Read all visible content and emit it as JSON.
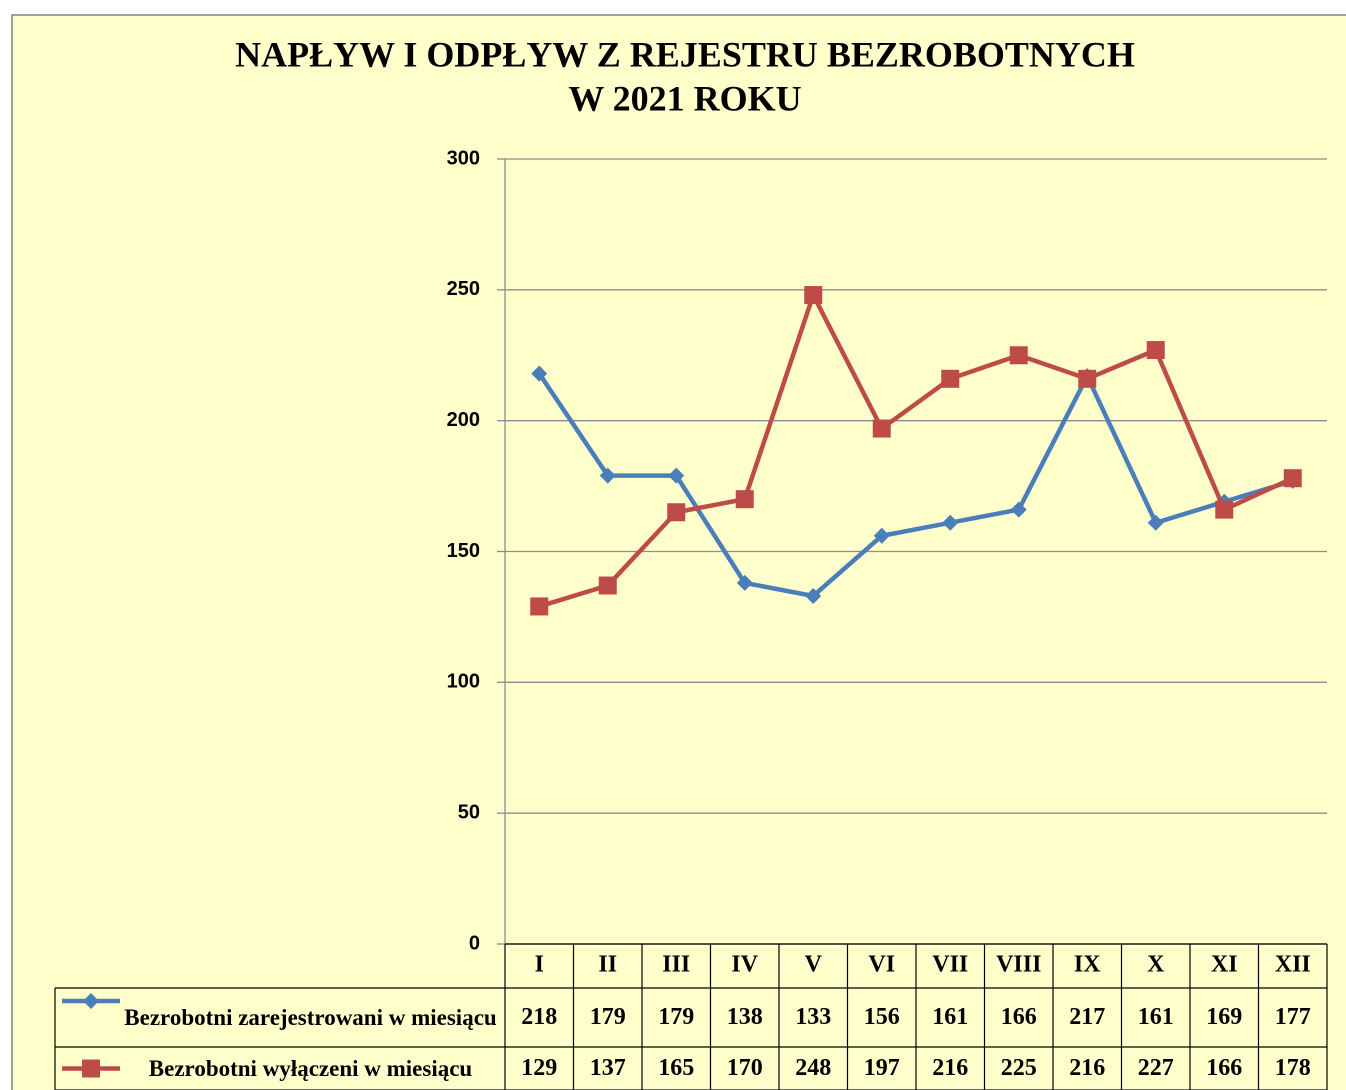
{
  "chart_data": {
    "type": "line",
    "title": [
      "NAPŁYW I ODPŁYW Z REJESTRU BEZROBOTNYCH",
      "W 2021 ROKU"
    ],
    "categories": [
      "I",
      "II",
      "III",
      "IV",
      "V",
      "VI",
      "VII",
      "VIII",
      "IX",
      "X",
      "XI",
      "XII"
    ],
    "series": [
      {
        "name": "Bezrobotni zarejestrowani w miesiącu",
        "color": "#4a7ebb",
        "marker": "diamond",
        "values": [
          218,
          179,
          179,
          138,
          133,
          156,
          161,
          166,
          217,
          161,
          169,
          177
        ]
      },
      {
        "name": "Bezrobotni wyłączeni w miesiącu",
        "color": "#be4b48",
        "marker": "square",
        "values": [
          129,
          137,
          165,
          170,
          248,
          197,
          216,
          225,
          216,
          227,
          166,
          178
        ]
      }
    ],
    "ylim": [
      0,
      300
    ],
    "yticks": [
      0,
      50,
      100,
      150,
      200,
      250,
      300
    ],
    "grid": true
  }
}
